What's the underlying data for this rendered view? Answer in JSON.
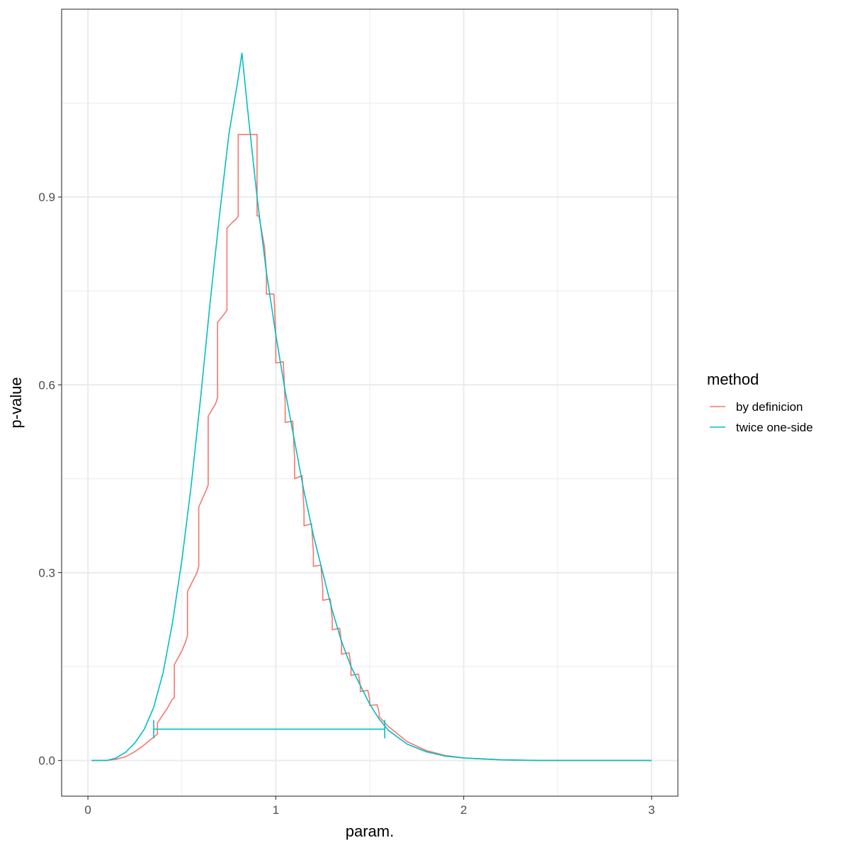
{
  "chart_data": {
    "type": "line",
    "title": "",
    "xlabel": "param.",
    "ylabel": "p-value",
    "xlim": [
      -0.14,
      3.14
    ],
    "ylim": [
      -0.057,
      1.2
    ],
    "x_ticks": [
      0,
      1,
      2,
      3
    ],
    "x_tick_labels": [
      "0",
      "1",
      "2",
      "3"
    ],
    "y_ticks": [
      0.0,
      0.3,
      0.6,
      0.9
    ],
    "y_tick_labels": [
      "0.0",
      "0.3",
      "0.6",
      "0.9"
    ],
    "grid": true,
    "legend": {
      "title": "method",
      "position": "right",
      "entries": [
        "by definicion",
        "twice one-side"
      ]
    },
    "series": [
      {
        "name": "by definicion",
        "color": "#F8766D",
        "x": [
          0.02,
          0.1,
          0.15,
          0.2,
          0.25,
          0.3,
          0.34,
          0.37,
          0.37,
          0.42,
          0.45,
          0.46,
          0.46,
          0.5,
          0.52,
          0.53,
          0.53,
          0.58,
          0.59,
          0.59,
          0.63,
          0.64,
          0.64,
          0.68,
          0.69,
          0.69,
          0.73,
          0.74,
          0.74,
          0.77,
          0.79,
          0.8,
          0.8,
          0.9,
          0.9,
          0.91,
          0.94,
          0.95,
          0.95,
          0.99,
          1.0,
          1.0,
          1.04,
          1.05,
          1.05,
          1.09,
          1.1,
          1.1,
          1.14,
          1.15,
          1.15,
          1.19,
          1.2,
          1.2,
          1.24,
          1.25,
          1.25,
          1.29,
          1.3,
          1.3,
          1.34,
          1.35,
          1.35,
          1.39,
          1.4,
          1.4,
          1.44,
          1.45,
          1.45,
          1.49,
          1.5,
          1.5,
          1.54,
          1.55,
          1.55,
          1.6,
          1.7,
          1.8,
          1.9,
          2.0,
          2.2,
          2.4,
          2.6,
          3.0
        ],
        "y": [
          0,
          0,
          0.002,
          0.006,
          0.014,
          0.025,
          0.035,
          0.042,
          0.06,
          0.082,
          0.098,
          0.1,
          0.153,
          0.175,
          0.19,
          0.2,
          0.27,
          0.3,
          0.31,
          0.405,
          0.432,
          0.44,
          0.55,
          0.57,
          0.58,
          0.7,
          0.715,
          0.72,
          0.85,
          0.86,
          0.865,
          0.87,
          1.0,
          1.0,
          0.87,
          0.87,
          0.82,
          0.78,
          0.745,
          0.745,
          0.68,
          0.635,
          0.637,
          0.57,
          0.54,
          0.542,
          0.483,
          0.45,
          0.455,
          0.4,
          0.375,
          0.378,
          0.333,
          0.31,
          0.312,
          0.274,
          0.256,
          0.258,
          0.226,
          0.209,
          0.211,
          0.186,
          0.17,
          0.172,
          0.152,
          0.136,
          0.138,
          0.12,
          0.11,
          0.112,
          0.097,
          0.088,
          0.089,
          0.076,
          0.07,
          0.054,
          0.03,
          0.016,
          0.008,
          0.004,
          0.001,
          0,
          0,
          0
        ]
      },
      {
        "name": "twice one-side",
        "color": "#00BFC4",
        "x": [
          0.02,
          0.1,
          0.15,
          0.2,
          0.25,
          0.3,
          0.35,
          0.4,
          0.45,
          0.5,
          0.55,
          0.6,
          0.65,
          0.7,
          0.75,
          0.8,
          0.82,
          0.85,
          0.9,
          0.95,
          1.0,
          1.05,
          1.1,
          1.15,
          1.2,
          1.25,
          1.3,
          1.35,
          1.4,
          1.45,
          1.5,
          1.55,
          1.6,
          1.7,
          1.8,
          1.9,
          2.0,
          2.2,
          2.4,
          2.6,
          3.0
        ],
        "y": [
          0,
          0,
          0.004,
          0.013,
          0.028,
          0.05,
          0.085,
          0.14,
          0.22,
          0.32,
          0.44,
          0.58,
          0.73,
          0.87,
          1.0,
          1.09,
          1.13,
          1.04,
          0.9,
          0.78,
          0.68,
          0.59,
          0.51,
          0.43,
          0.36,
          0.3,
          0.24,
          0.19,
          0.15,
          0.12,
          0.09,
          0.066,
          0.048,
          0.026,
          0.014,
          0.007,
          0.004,
          0.001,
          0,
          0,
          0
        ]
      }
    ],
    "interval": {
      "series": "twice one-side",
      "color": "#00BFC4",
      "y": 0.05,
      "x_low": 0.35,
      "x_high": 1.58
    }
  }
}
